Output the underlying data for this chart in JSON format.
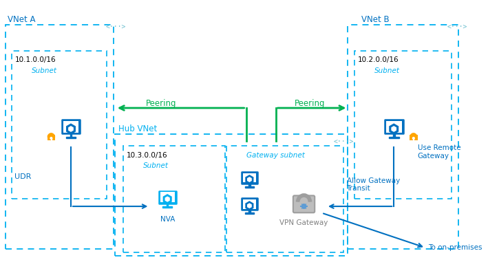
{
  "fig_width": 7.09,
  "fig_height": 3.97,
  "dpi": 100,
  "bg_color": "#ffffff",
  "vnet_a_label": "VNet A",
  "vnet_b_label": "VNet B",
  "hub_vnet_label": "Hub VNet",
  "subnet_a_ip": "10.1.0.0/16",
  "subnet_b_ip": "10.2.0.0/16",
  "subnet_hub_ip": "10.3.0.0/16",
  "subnet_label": "Subnet",
  "gateway_subnet_label": "Gateway subnet",
  "nva_label": "NVA",
  "vpn_label": "VPN Gateway",
  "udr_label": "UDR",
  "peering_label": "Peering",
  "allow_gw_label": "Allow Gateway\nTransit",
  "use_remote_label": "Use Remote\nGateway",
  "to_onprem_label": "To on-premises",
  "blue_dark": "#0070C0",
  "blue_light": "#00B0F0",
  "blue_label": "#0070C0",
  "green": "#00B050",
  "gray": "#808080",
  "gray_light": "#A0A0A0",
  "orange": "#FFA500",
  "conn_sym_color": "#70C0D0"
}
